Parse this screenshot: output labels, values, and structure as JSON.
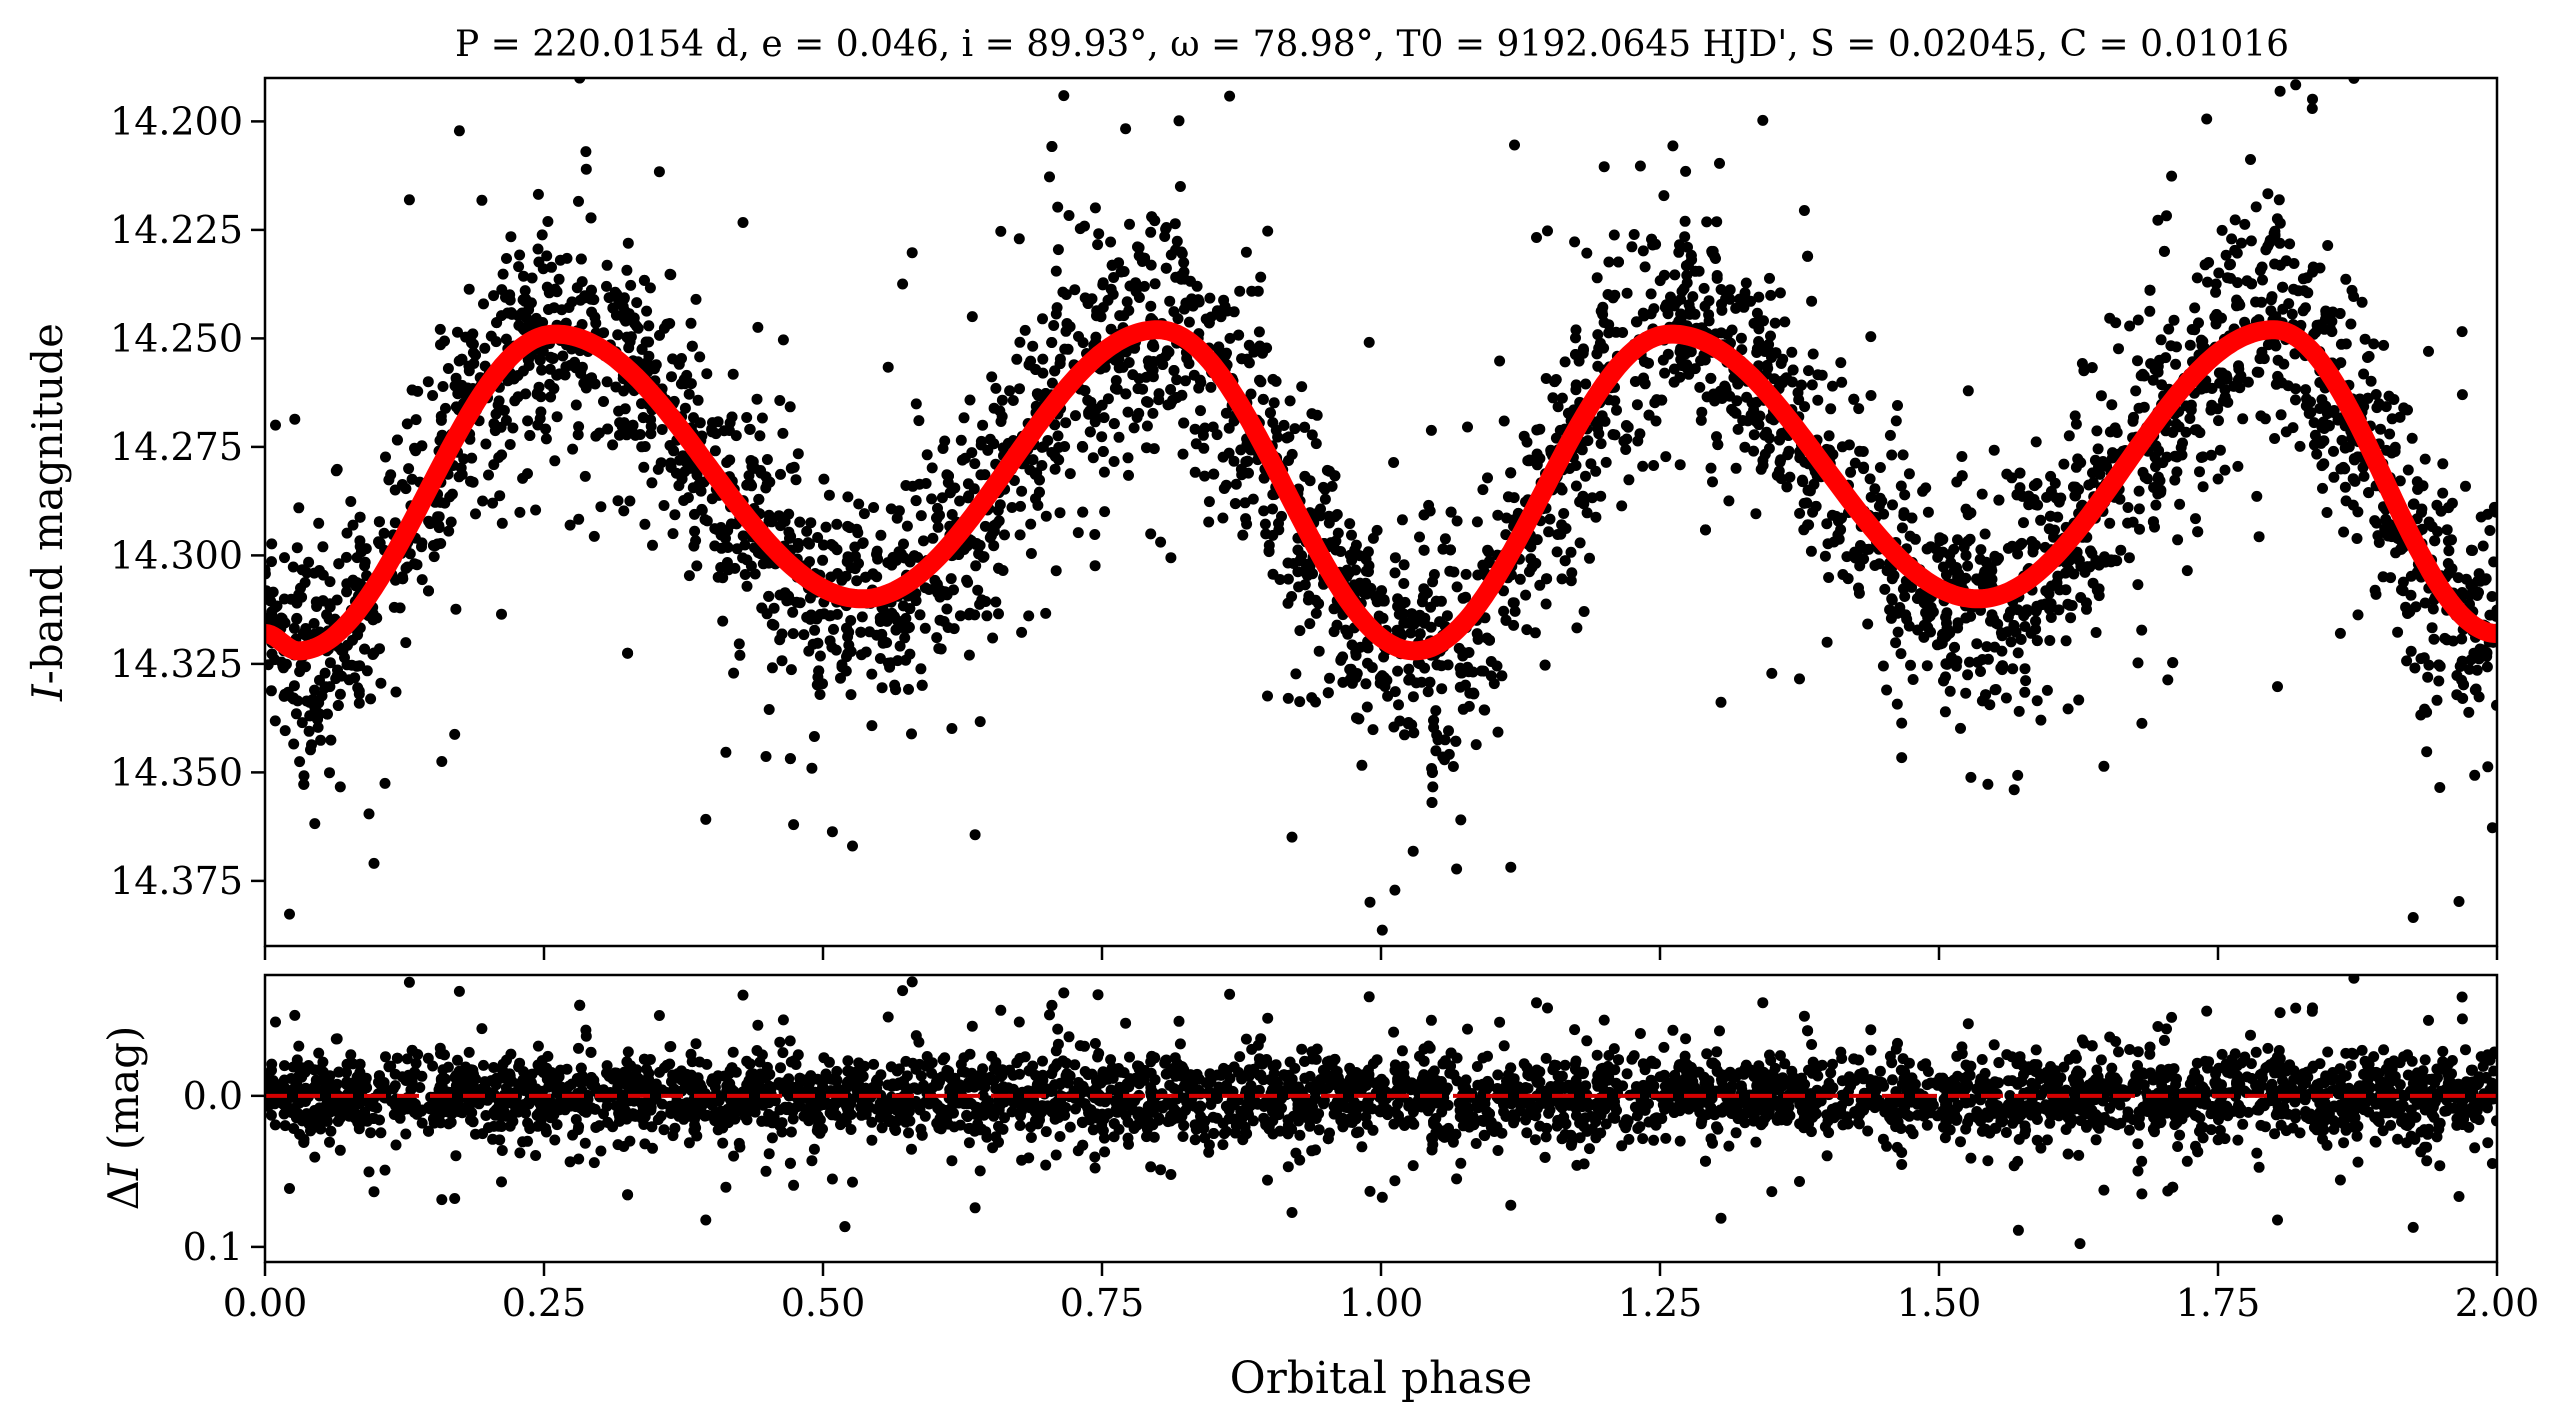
{
  "chart_data": [
    {
      "type": "scatter",
      "panel": "light-curve",
      "title": "P = 220.0154 d, e = 0.046, i = 89.93°, ω = 78.98°, T0 = 9192.0645 HJD', S = 0.02045, C = 0.01016",
      "xlabel": "",
      "ylabel": "I-band magnitude",
      "ylabel_italic_part": "I",
      "ylabel_rest": "-band magnitude",
      "xlim": [
        0.0,
        2.0
      ],
      "ylim": [
        14.39,
        14.19
      ],
      "y_inverted": true,
      "yticks": [
        "14.200",
        "14.225",
        "14.250",
        "14.275",
        "14.300",
        "14.325",
        "14.350",
        "14.375"
      ],
      "yticks_values": [
        14.2,
        14.225,
        14.25,
        14.275,
        14.3,
        14.325,
        14.35,
        14.375
      ],
      "points_color": "#000000",
      "model_color": "#ff0000",
      "model_points": [
        {
          "x": 0.0,
          "y": 14.318
        },
        {
          "x": 0.03,
          "y": 14.322
        },
        {
          "x": 0.26,
          "y": 14.249
        },
        {
          "x": 0.535,
          "y": 14.31
        },
        {
          "x": 0.8,
          "y": 14.248
        },
        {
          "x": 1.03,
          "y": 14.322
        },
        {
          "x": 1.26,
          "y": 14.249
        },
        {
          "x": 1.535,
          "y": 14.31
        },
        {
          "x": 1.8,
          "y": 14.248
        },
        {
          "x": 2.0,
          "y": 14.318
        }
      ],
      "scatter_summary": "dense phased photometry, scatter about model roughly ±0.03 mag"
    },
    {
      "type": "scatter",
      "panel": "residuals",
      "xlabel": "Orbital phase",
      "ylabel": "ΔI (mag)",
      "ylabel_delta": "Δ",
      "ylabel_italic_part": "I",
      "ylabel_rest": " (mag)",
      "xlim": [
        0.0,
        2.0
      ],
      "ylim": [
        0.11,
        -0.08
      ],
      "y_inverted": true,
      "yticks": [
        "0.0",
        "0.1"
      ],
      "yticks_values": [
        0.0,
        0.1
      ],
      "xticks": [
        "0.00",
        "0.25",
        "0.50",
        "0.75",
        "1.00",
        "1.25",
        "1.50",
        "1.75",
        "2.00"
      ],
      "xticks_values": [
        0.0,
        0.25,
        0.5,
        0.75,
        1.0,
        1.25,
        1.5,
        1.75,
        2.0
      ],
      "zero_line": 0.0,
      "zero_line_style": "dashed",
      "zero_line_color": "#d40000",
      "points_color": "#000000"
    }
  ]
}
